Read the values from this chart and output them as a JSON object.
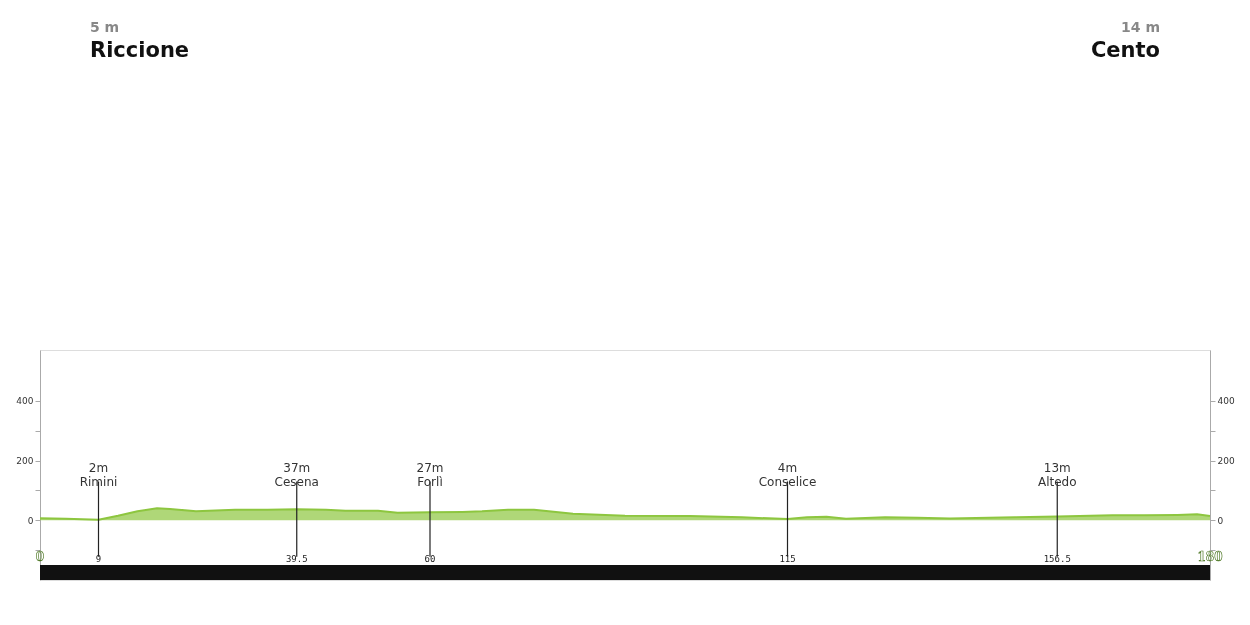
{
  "chart_data": {
    "type": "area",
    "annotations": [
      "5 m",
      "Riccione",
      "14 m",
      "Cento"
    ],
    "x": [
      0,
      4,
      9,
      12,
      15,
      18,
      20,
      24,
      30,
      35,
      39.5,
      44,
      47,
      52,
      55,
      60,
      65,
      68,
      72,
      76,
      82,
      90,
      100,
      108,
      115,
      118,
      121,
      124,
      130,
      135,
      140,
      150,
      156.5,
      165,
      170,
      175,
      178,
      180
    ],
    "series": [
      {
        "color": "#8dc63f",
        "values": [
          7,
          5,
          2,
          15,
          30,
          40,
          38,
          30,
          35,
          35,
          37,
          35,
          32,
          32,
          25,
          27,
          28,
          30,
          35,
          35,
          22,
          15,
          14,
          10,
          4,
          10,
          12,
          5,
          10,
          8,
          6,
          10,
          13,
          17,
          17,
          18,
          20,
          14
        ]
      }
    ],
    "xlim": [
      0,
      180
    ],
    "xticks": [
      0,
      9,
      39.5,
      60,
      115,
      156.5,
      180
    ],
    "ylim": [
      -200,
      570
    ],
    "yticks": [
      {
        "value": -100,
        "label": null
      },
      0,
      {
        "value": 100,
        "label": null
      },
      200,
      {
        "value": 300,
        "label": null
      },
      400
    ],
    "y2lim": [
      -200,
      570
    ],
    "y2ticks": [
      {
        "value": -100,
        "label": null
      },
      0,
      {
        "value": 100,
        "label": null
      },
      200,
      {
        "value": 300,
        "label": null
      },
      400
    ],
    "ref_lines": [
      {
        "axis": "x",
        "value": 9,
        "label": "2m\nRimini"
      },
      {
        "axis": "x",
        "value": 39.5,
        "label": "37m\nCesena"
      },
      {
        "axis": "x",
        "value": 60,
        "label": "27m\nForlì"
      },
      {
        "axis": "x",
        "value": 115,
        "label": "4m\nConselice"
      },
      {
        "axis": "x",
        "value": 156.5,
        "label": "13m\nAltedo"
      }
    ],
    "bands": [
      {
        "axis": "y",
        "from": -200,
        "to": -150,
        "color": "#111111"
      }
    ],
    "grid": false
  }
}
